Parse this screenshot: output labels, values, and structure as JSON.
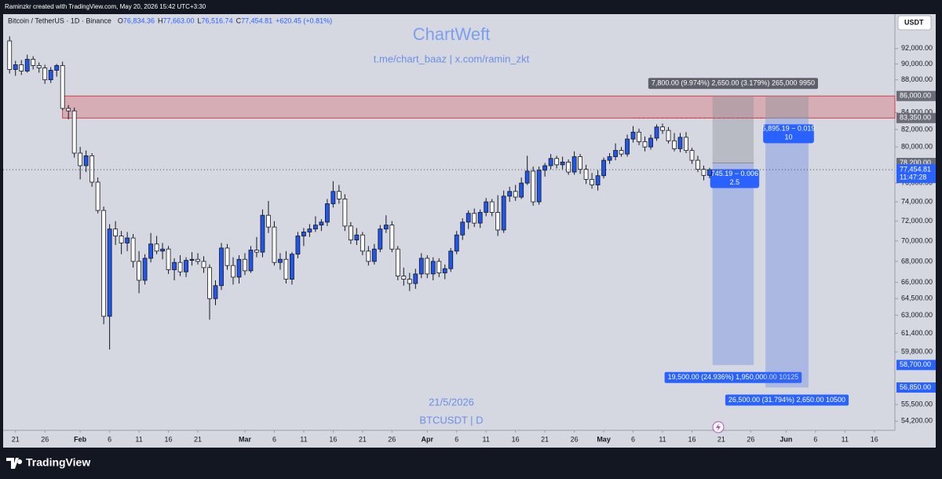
{
  "header": {
    "credit": "Raminzkr created with TradingView.com, May 20, 2026 15:42 UTC+3:30",
    "symbol": "Bitcoin / TetherUS · 1D · Binance",
    "ohlc": [
      {
        "k": "O",
        "v": "76,834.36"
      },
      {
        "k": "H",
        "v": "77,663.00"
      },
      {
        "k": "L",
        "v": "76,516.74"
      },
      {
        "k": "C",
        "v": "77,454.81"
      }
    ],
    "change": "+620.45 (+0.81%)"
  },
  "watermark": {
    "title": "ChartWeft",
    "links": "t.me/chart_baaz  |  x.com/ramin_zkt",
    "date": "21/5/2026",
    "symbol": "BTCUSDT | D"
  },
  "currency": "USDT",
  "brand": "TradingView",
  "chart_data": {
    "type": "candlestick",
    "log_scale": true,
    "up_color": "#2156e8",
    "down_color": "#ffffff",
    "wick_color": "#131722",
    "ylim": [
      53500,
      96600
    ],
    "xlim": [
      -2.1,
      149.5
    ],
    "yticks": [
      {
        "value": 92000,
        "label": "92,000.00"
      },
      {
        "value": 90000,
        "label": "90,000.00"
      },
      {
        "value": 88000,
        "label": "88,000.00"
      },
      {
        "value": 84000,
        "label": "84,000.00"
      },
      {
        "value": 82000,
        "label": "82,000.00"
      },
      {
        "value": 80000,
        "label": "80,000.00"
      },
      {
        "value": 76000,
        "label": "76,000.00"
      },
      {
        "value": 74000,
        "label": "74,000.00"
      },
      {
        "value": 72000,
        "label": "72,000.00"
      },
      {
        "value": 70000,
        "label": "70,000.00"
      },
      {
        "value": 68000,
        "label": "68,000.00"
      },
      {
        "value": 66000,
        "label": "66,000.00"
      },
      {
        "value": 64500,
        "label": "64,500.00"
      },
      {
        "value": 63000,
        "label": "63,000.00"
      },
      {
        "value": 61400,
        "label": "61,400.00"
      },
      {
        "value": 59800,
        "label": "59,800.00"
      },
      {
        "value": 55500,
        "label": "55,500.00"
      },
      {
        "value": 54200,
        "label": "54,200.00"
      }
    ],
    "xticks": [
      {
        "value": 0,
        "label": "21"
      },
      {
        "value": 5,
        "label": "26"
      },
      {
        "value": 11,
        "label": "Feb"
      },
      {
        "value": 16,
        "label": "6"
      },
      {
        "value": 21,
        "label": "11"
      },
      {
        "value": 26,
        "label": "16"
      },
      {
        "value": 31,
        "label": "21"
      },
      {
        "value": 39,
        "label": "Mar"
      },
      {
        "value": 44,
        "label": "6"
      },
      {
        "value": 49,
        "label": "11"
      },
      {
        "value": 54,
        "label": "16"
      },
      {
        "value": 59,
        "label": "21"
      },
      {
        "value": 64,
        "label": "26"
      },
      {
        "value": 70,
        "label": "Apr"
      },
      {
        "value": 75,
        "label": "6"
      },
      {
        "value": 80,
        "label": "11"
      },
      {
        "value": 85,
        "label": "16"
      },
      {
        "value": 90,
        "label": "21"
      },
      {
        "value": 95,
        "label": "26"
      },
      {
        "value": 100,
        "label": "May"
      },
      {
        "value": 105,
        "label": "6"
      },
      {
        "value": 110,
        "label": "11"
      },
      {
        "value": 115,
        "label": "16"
      },
      {
        "value": 120,
        "label": "21"
      },
      {
        "value": 125,
        "label": "26"
      },
      {
        "value": 131,
        "label": "Jun"
      },
      {
        "value": 136,
        "label": "6"
      },
      {
        "value": 141,
        "label": "11"
      },
      {
        "value": 146,
        "label": "16"
      }
    ],
    "x": [
      -1,
      0,
      1,
      2,
      3,
      4,
      5,
      6,
      7,
      8,
      9,
      10,
      11,
      12,
      13,
      14,
      15,
      16,
      17,
      18,
      19,
      20,
      21,
      22,
      23,
      24,
      25,
      26,
      27,
      28,
      29,
      30,
      31,
      32,
      33,
      34,
      35,
      36,
      37,
      38,
      39,
      40,
      41,
      42,
      43,
      44,
      45,
      46,
      47,
      48,
      49,
      50,
      51,
      52,
      53,
      54,
      55,
      56,
      57,
      58,
      59,
      60,
      61,
      62,
      63,
      64,
      65,
      66,
      67,
      68,
      69,
      70,
      71,
      72,
      73,
      74,
      75,
      76,
      77,
      78,
      79,
      80,
      81,
      82,
      83,
      84,
      85,
      86,
      87,
      88,
      89,
      90,
      91,
      92,
      93,
      94,
      95,
      96,
      97,
      98,
      99,
      100,
      101,
      102,
      103,
      104,
      105,
      106,
      107,
      108,
      109,
      110,
      111,
      112,
      113,
      114,
      115,
      116,
      117,
      118
    ],
    "open": [
      93000,
      89300,
      89900,
      89100,
      90600,
      89800,
      89500,
      88000,
      89200,
      89800,
      84500,
      84200,
      79300,
      77900,
      79000,
      76100,
      73100,
      62900,
      71200,
      70500,
      69800,
      70300,
      68000,
      66200,
      68300,
      69700,
      69000,
      69200,
      67200,
      67900,
      67000,
      68100,
      68200,
      68000,
      67400,
      64500,
      65700,
      69300,
      67600,
      66500,
      68200,
      67100,
      69100,
      68900,
      72600,
      71400,
      67900,
      68200,
      66300,
      68700,
      70500,
      70900,
      71200,
      71600,
      71900,
      73800,
      75100,
      74300,
      71500,
      70100,
      70600,
      69000,
      68000,
      69200,
      71200,
      71600,
      69200,
      66600,
      66300,
      65900,
      66800,
      68300,
      66800,
      68000,
      66900,
      67300,
      69000,
      70600,
      71900,
      72800,
      71800,
      72900,
      74000,
      72900,
      71100,
      74600,
      75100,
      74500,
      76000,
      77300,
      74000,
      77400,
      77900,
      78700,
      78000,
      78300,
      77200,
      78900,
      77500,
      76400,
      75800,
      76800,
      78500,
      78900,
      79600,
      79200,
      80900,
      81700,
      80600,
      80000,
      81000,
      82300,
      81900,
      80700,
      79800,
      81100,
      79600,
      78500,
      77500,
      76834.36
    ],
    "high": [
      93600,
      90400,
      90500,
      91200,
      91000,
      90200,
      89900,
      89600,
      90000,
      90300,
      84900,
      84600,
      80000,
      79600,
      79300,
      76600,
      73500,
      71700,
      72000,
      71000,
      70900,
      70700,
      69000,
      68700,
      70800,
      70500,
      69800,
      69500,
      68300,
      68600,
      68400,
      68900,
      68800,
      68500,
      67700,
      66200,
      69800,
      69700,
      68400,
      68600,
      68800,
      69500,
      70400,
      73200,
      74100,
      72000,
      68800,
      69000,
      68900,
      70900,
      71300,
      71700,
      72500,
      72200,
      74300,
      76200,
      75800,
      74800,
      71900,
      71300,
      70900,
      69500,
      69700,
      71600,
      72600,
      72000,
      69500,
      67400,
      66900,
      67300,
      68800,
      68600,
      68400,
      68300,
      67700,
      69300,
      71000,
      72300,
      73100,
      73300,
      73200,
      74400,
      74300,
      74700,
      75200,
      75600,
      75800,
      76600,
      79000,
      77800,
      77800,
      78200,
      79200,
      79000,
      78900,
      78600,
      79500,
      79200,
      78000,
      77100,
      77400,
      78800,
      79300,
      80400,
      80000,
      81400,
      82400,
      82100,
      81200,
      81400,
      82600,
      82700,
      82300,
      81600,
      81600,
      81700,
      79900,
      79000,
      77900,
      77663
    ],
    "low": [
      88800,
      88500,
      88600,
      88900,
      89300,
      88900,
      87500,
      87600,
      88400,
      84300,
      83200,
      78800,
      76400,
      77200,
      75600,
      72800,
      62200,
      60000,
      69600,
      68700,
      69000,
      67400,
      65000,
      65800,
      67900,
      68700,
      68200,
      66800,
      66200,
      66600,
      66500,
      67600,
      67700,
      66900,
      62600,
      63900,
      65300,
      67200,
      65800,
      65900,
      66700,
      66900,
      68400,
      68400,
      70800,
      67600,
      67200,
      65900,
      65800,
      68300,
      69500,
      70400,
      70900,
      71000,
      71500,
      73400,
      73800,
      71000,
      69700,
      69600,
      68600,
      67600,
      67700,
      68900,
      70800,
      68900,
      66200,
      65700,
      65200,
      65400,
      66400,
      66400,
      66200,
      66500,
      66300,
      67000,
      68700,
      70100,
      71200,
      71400,
      71300,
      72500,
      72500,
      70500,
      70800,
      74000,
      74100,
      74300,
      75800,
      73600,
      73700,
      76700,
      77500,
      77600,
      77500,
      76900,
      76900,
      77000,
      75900,
      75400,
      75200,
      76500,
      78100,
      78500,
      78900,
      78900,
      80500,
      80200,
      79500,
      79700,
      80700,
      81500,
      80400,
      79500,
      79400,
      79300,
      78100,
      77200,
      76300,
      76516.74
    ],
    "close": [
      89300,
      89900,
      89100,
      90600,
      89800,
      89500,
      88000,
      89200,
      89800,
      84500,
      84200,
      79300,
      77900,
      79000,
      76100,
      73100,
      62900,
      71200,
      70500,
      69800,
      70300,
      68000,
      66200,
      68300,
      69700,
      69000,
      69200,
      67200,
      67900,
      67000,
      68100,
      68200,
      68000,
      67400,
      64500,
      65700,
      69300,
      67600,
      66500,
      68200,
      67100,
      69100,
      68900,
      72600,
      71400,
      67900,
      68200,
      66300,
      68700,
      70500,
      70900,
      71200,
      71600,
      71900,
      73800,
      75100,
      74300,
      71500,
      70100,
      70600,
      69000,
      68000,
      69200,
      71200,
      71600,
      69200,
      66600,
      66300,
      65900,
      66800,
      68300,
      66800,
      68000,
      66900,
      67300,
      69000,
      70600,
      71900,
      72800,
      71800,
      72900,
      74000,
      72900,
      71100,
      74600,
      75100,
      74500,
      76000,
      77300,
      74000,
      77400,
      77900,
      78700,
      78000,
      78300,
      77200,
      78900,
      77500,
      76400,
      75800,
      76800,
      78500,
      78900,
      79600,
      79200,
      80900,
      81700,
      80600,
      80000,
      81000,
      82300,
      81900,
      80700,
      79800,
      81100,
      79600,
      78500,
      77500,
      76834.36,
      77454.81
    ],
    "zone": {
      "top": 86000,
      "bottom": 83350,
      "x_start": 8
    },
    "dashed_level": {
      "value": 83350,
      "x": [
        105,
        127.5
      ]
    },
    "positions": [
      {
        "x": [
          118.5,
          125.5
        ],
        "stop": 86000,
        "entry": 78200,
        "target": 58700,
        "top_label": "7,800.00 (9.974%)  2,650.00 (3.179%) 265,000 9950",
        "mid_label": [
          "745.19 − 0.006",
          "2.5"
        ],
        "bottom_label": "19,500.00 (24.936%) 1,950,000.00 10125"
      },
      {
        "x": [
          127.5,
          134.8
        ],
        "stop": 86000,
        "entry": 83350,
        "target": 56850,
        "mid_label": [
          "5,895.19 − 0.019",
          "10"
        ],
        "bottom_label": "26,500.00 (31.794%) 2,650.00 10500"
      }
    ],
    "levels": [
      {
        "value": 86000,
        "label": "86,000.00",
        "color": "#6b6e78"
      },
      {
        "value": 83350,
        "label": "83,350.00",
        "color": "#6b6e78"
      },
      {
        "value": 78200,
        "label": "78,200.00",
        "color": "#6b6e78"
      },
      {
        "value": 58700,
        "label": "58,700.00",
        "color": "#2962ff"
      },
      {
        "value": 56850,
        "label": "56,850.00",
        "color": "#2962ff"
      }
    ],
    "last_price": {
      "value": 77454.81,
      "label": "77,454.81",
      "countdown": "11:47:28",
      "color": "#2962ff"
    }
  }
}
